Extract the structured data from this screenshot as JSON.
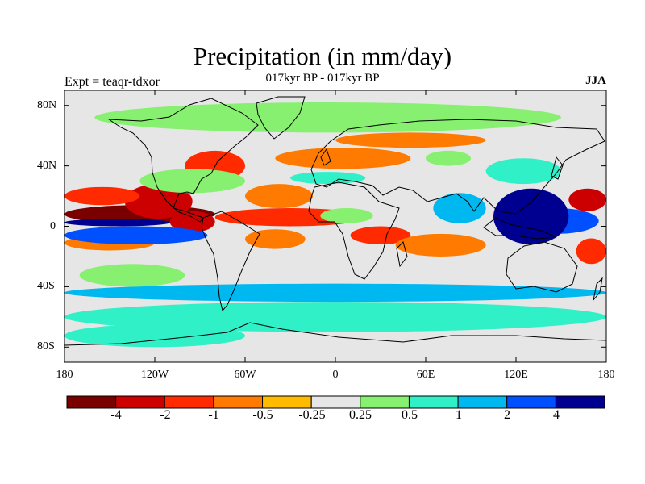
{
  "chart_data": {
    "type": "heatmap",
    "title": "Precipitation (in mm/day)",
    "subtitle": "017kyr BP - 017kyr BP",
    "left_label": "Expt = teaqr-tdxor",
    "right_label": "JJA",
    "xlabel": "",
    "ylabel": "",
    "x_range": [
      -180,
      180
    ],
    "y_range": [
      -90,
      90
    ],
    "x_ticks": [
      "180",
      "120W",
      "60W",
      "0",
      "60E",
      "120E",
      "180"
    ],
    "y_ticks": [
      "80N",
      "40N",
      "0",
      "40S",
      "80S"
    ],
    "colorbar": {
      "levels": [
        "-4",
        "-2",
        "-1",
        "-0.5",
        "-0.25",
        "0.25",
        "0.5",
        "1",
        "2",
        "4"
      ],
      "colors": [
        "#7a0000",
        "#cc0000",
        "#ff2a00",
        "#ff7a00",
        "#ffbb00",
        "#e6e6e6",
        "#88f070",
        "#30f0c8",
        "#00b8f0",
        "#0050ff",
        "#000090"
      ]
    },
    "neutral_color": "#e6e6e6",
    "anomaly_regions": [
      {
        "lon": [
          -180,
          -80
        ],
        "lat": [
          2,
          14
        ],
        "bin": 0
      },
      {
        "lon": [
          -140,
          -95
        ],
        "lat": [
          5,
          28
        ],
        "bin": 1
      },
      {
        "lon": [
          -180,
          -130
        ],
        "lat": [
          14,
          26
        ],
        "bin": 2
      },
      {
        "lon": [
          -180,
          -120
        ],
        "lat": [
          -16,
          -6
        ],
        "bin": 3
      },
      {
        "lon": [
          -110,
          -80
        ],
        "lat": [
          -4,
          10
        ],
        "bin": 1
      },
      {
        "lon": [
          -80,
          20
        ],
        "lat": [
          0,
          12
        ],
        "bin": 2
      },
      {
        "lon": [
          -60,
          -15
        ],
        "lat": [
          12,
          28
        ],
        "bin": 3
      },
      {
        "lon": [
          -60,
          -20
        ],
        "lat": [
          -15,
          -2
        ],
        "bin": 3
      },
      {
        "lon": [
          10,
          50
        ],
        "lat": [
          -12,
          0
        ],
        "bin": 2
      },
      {
        "lon": [
          -100,
          -60
        ],
        "lat": [
          30,
          50
        ],
        "bin": 2
      },
      {
        "lon": [
          -40,
          50
        ],
        "lat": [
          38,
          52
        ],
        "bin": 3
      },
      {
        "lon": [
          0,
          100
        ],
        "lat": [
          52,
          62
        ],
        "bin": 3
      },
      {
        "lon": [
          40,
          100
        ],
        "lat": [
          -20,
          -5
        ],
        "bin": 3
      },
      {
        "lon": [
          155,
          180
        ],
        "lat": [
          10,
          25
        ],
        "bin": 1
      },
      {
        "lon": [
          160,
          180
        ],
        "lat": [
          -25,
          -8
        ],
        "bin": 2
      },
      {
        "lon": [
          -180,
          -85
        ],
        "lat": [
          -12,
          0
        ],
        "bin": 9
      },
      {
        "lon": [
          -180,
          -110
        ],
        "lat": [
          0,
          5
        ],
        "bin": 10
      },
      {
        "lon": [
          120,
          175
        ],
        "lat": [
          -5,
          12
        ],
        "bin": 9
      },
      {
        "lon": [
          65,
          100
        ],
        "lat": [
          2,
          22
        ],
        "bin": 8
      },
      {
        "lon": [
          105,
          155
        ],
        "lat": [
          -12,
          25
        ],
        "bin": 10
      },
      {
        "lon": [
          -180,
          180
        ],
        "lat": [
          -70,
          -50
        ],
        "bin": 7
      },
      {
        "lon": [
          -180,
          180
        ],
        "lat": [
          -50,
          -38
        ],
        "bin": 8
      },
      {
        "lon": [
          -180,
          -60
        ],
        "lat": [
          -80,
          -65
        ],
        "bin": 7
      },
      {
        "lon": [
          -160,
          150
        ],
        "lat": [
          62,
          82
        ],
        "bin": 6
      },
      {
        "lon": [
          -130,
          -60
        ],
        "lat": [
          22,
          38
        ],
        "bin": 6
      },
      {
        "lon": [
          -30,
          20
        ],
        "lat": [
          28,
          36
        ],
        "bin": 7
      },
      {
        "lon": [
          100,
          150
        ],
        "lat": [
          28,
          45
        ],
        "bin": 7
      },
      {
        "lon": [
          -170,
          -100
        ],
        "lat": [
          -40,
          -25
        ],
        "bin": 6
      },
      {
        "lon": [
          -10,
          25
        ],
        "lat": [
          2,
          12
        ],
        "bin": 6
      },
      {
        "lon": [
          60,
          90
        ],
        "lat": [
          40,
          50
        ],
        "bin": 6
      }
    ]
  }
}
